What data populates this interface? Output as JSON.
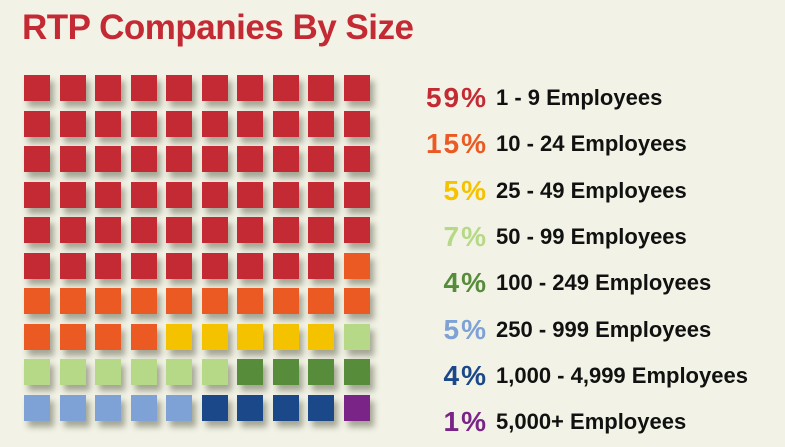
{
  "title": "RTP Companies By Size",
  "colors": {
    "background": "#f2f3e6",
    "title": "#c42a34"
  },
  "chart_data": {
    "type": "waffle",
    "title": "RTP Companies By Size",
    "grid": {
      "columns": 10,
      "rows": 10,
      "total": 100
    },
    "categories": [
      {
        "percent": "59%",
        "label": "1 - 9 Employees",
        "value": 59,
        "color": "#c42a34"
      },
      {
        "percent": "15%",
        "label": "10 - 24 Employees",
        "value": 15,
        "color": "#ec5a24"
      },
      {
        "percent": "5%",
        "label": "25 - 49 Employees",
        "value": 5,
        "color": "#f5c200"
      },
      {
        "percent": "7%",
        "label": "50 - 99 Employees",
        "value": 7,
        "color": "#b6d987"
      },
      {
        "percent": "4%",
        "label": "100 - 249 Employees",
        "value": 4,
        "color": "#578c3b"
      },
      {
        "percent": "5%",
        "label": "250 - 999 Employees",
        "value": 5,
        "color": "#7ea1d6"
      },
      {
        "percent": "4%",
        "label": "1,000 - 4,999 Employees",
        "value": 4,
        "color": "#1b4888"
      },
      {
        "percent": "1%",
        "label": "5,000+ Employees",
        "value": 1,
        "color": "#7a2487"
      }
    ]
  }
}
